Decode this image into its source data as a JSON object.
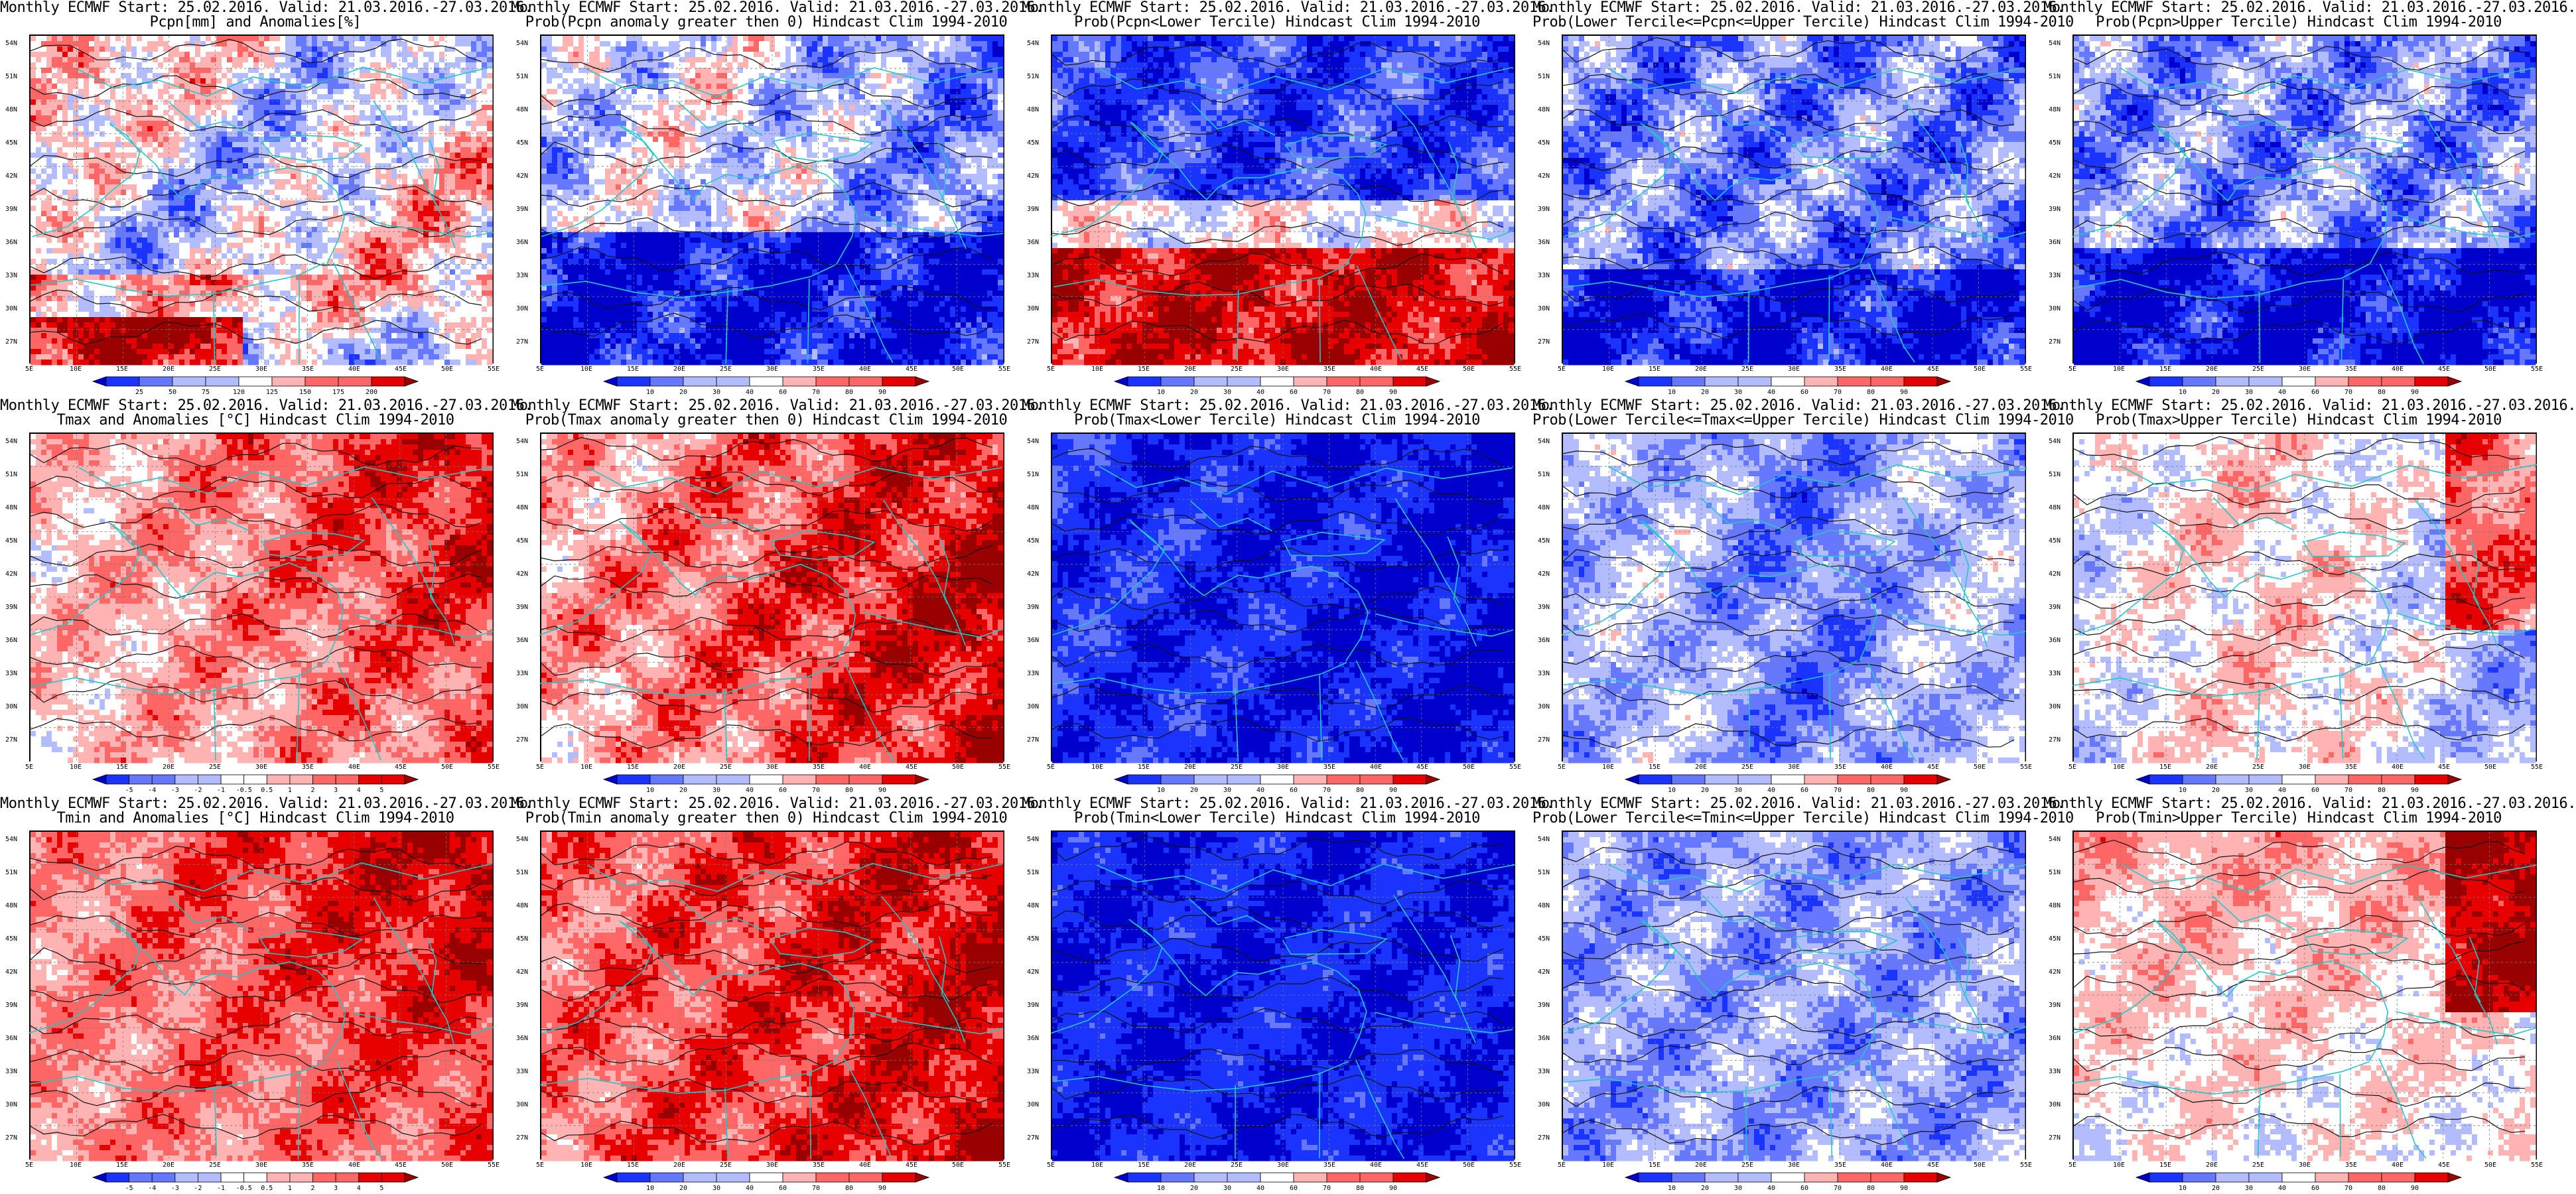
{
  "map": {
    "lat_ticks": [
      "54N",
      "51N",
      "48N",
      "45N",
      "42N",
      "39N",
      "36N",
      "33N",
      "30N",
      "27N"
    ],
    "lon_ticks": [
      "5E",
      "10E",
      "15E",
      "20E",
      "25E",
      "30E",
      "35E",
      "40E",
      "45E",
      "50E",
      "55E"
    ],
    "coast_color": "#22c7c7",
    "contour_color": "#111111"
  },
  "colorbars": {
    "precip": [
      "25",
      "50",
      "75",
      "120",
      "125",
      "150",
      "175",
      "200"
    ],
    "prob": [
      "10",
      "20",
      "30",
      "40",
      "60",
      "70",
      "80",
      "90"
    ],
    "anom": [
      "-5",
      "-4",
      "-3",
      "-2",
      "-1",
      "-0.5",
      "0.5",
      "1",
      "2",
      "3",
      "4",
      "5"
    ]
  },
  "panels": [
    {
      "title1": "Monthly ECMWF Start: 25.02.2016. Valid: 21.03.2016.-27.03.2016.",
      "title2": "Pcpn[mm] and Anomalies[%]",
      "cbar": "precip",
      "pattern": "pcp_anom",
      "seed": 11
    },
    {
      "title1": "Monthly ECMWF Start: 25.02.2016. Valid: 21.03.2016.-27.03.2016.",
      "title2": "Prob(Pcpn anomaly greater then 0) Hindcast Clim 1994-2010",
      "cbar": "prob",
      "pattern": "pcp_pos",
      "seed": 12
    },
    {
      "title1": "Monthly ECMWF Start: 25.02.2016. Valid: 21.03.2016.-27.03.2016.",
      "title2": "Prob(Pcpn<Lower Tercile) Hindcast Clim 1994-2010",
      "cbar": "prob",
      "pattern": "pcp_low",
      "seed": 13
    },
    {
      "title1": "Monthly ECMWF Start: 25.02.2016. Valid: 21.03.2016.-27.03.2016.",
      "title2": "Prob(Lower Tercile<=Pcpn<=Upper Tercile) Hindcast Clim 1994-2010",
      "cbar": "prob",
      "pattern": "pcp_mid",
      "seed": 14
    },
    {
      "title1": "Monthly ECMWF Start: 25.02.2016. Valid: 21.03.2016.-27.03.2016.",
      "title2": "Prob(Pcpn>Upper Tercile) Hindcast Clim 1994-2010",
      "cbar": "prob",
      "pattern": "pcp_up",
      "seed": 15
    },
    {
      "title1": "Monthly ECMWF Start: 25.02.2016. Valid: 21.03.2016.-27.03.2016.",
      "title2": "Tmax and Anomalies [°C] Hindcast Clim 1994-2010",
      "cbar": "anom",
      "pattern": "t_anom",
      "seed": 21
    },
    {
      "title1": "Monthly ECMWF Start: 25.02.2016. Valid: 21.03.2016.-27.03.2016.",
      "title2": "Prob(Tmax anomaly greater then 0) Hindcast Clim 1994-2010",
      "cbar": "prob",
      "pattern": "t_pos",
      "seed": 22
    },
    {
      "title1": "Monthly ECMWF Start: 25.02.2016. Valid: 21.03.2016.-27.03.2016.",
      "title2": "Prob(Tmax<Lower Tercile) Hindcast Clim 1994-2010",
      "cbar": "prob",
      "pattern": "t_low",
      "seed": 23
    },
    {
      "title1": "Monthly ECMWF Start: 25.02.2016. Valid: 21.03.2016.-27.03.2016.",
      "title2": "Prob(Lower Tercile<=Tmax<=Upper Tercile) Hindcast Clim 1994-2010",
      "cbar": "prob",
      "pattern": "t_mid",
      "seed": 24
    },
    {
      "title1": "Monthly ECMWF Start: 25.02.2016. Valid: 21.03.2016.-27.03.2016.",
      "title2": "Prob(Tmax>Upper Tercile) Hindcast Clim 1994-2010",
      "cbar": "prob",
      "pattern": "t_up",
      "seed": 25
    },
    {
      "title1": "Monthly ECMWF Start: 25.02.2016. Valid: 21.03.2016.-27.03.2016.",
      "title2": "Tmin and Anomalies [°C] Hindcast Clim 1994-2010",
      "cbar": "anom",
      "pattern": "tn_anom",
      "seed": 31
    },
    {
      "title1": "Monthly ECMWF Start: 25.02.2016. Valid: 21.03.2016.-27.03.2016.",
      "title2": "Prob(Tmin anomaly greater then 0) Hindcast Clim 1994-2010",
      "cbar": "prob",
      "pattern": "tn_pos",
      "seed": 32
    },
    {
      "title1": "Monthly ECMWF Start: 25.02.2016. Valid: 21.03.2016.-27.03.2016.",
      "title2": "Prob(Tmin<Lower Tercile) Hindcast Clim 1994-2010",
      "cbar": "prob",
      "pattern": "tn_low",
      "seed": 33
    },
    {
      "title1": "Monthly ECMWF Start: 25.02.2016. Valid: 21.03.2016.-27.03.2016.",
      "title2": "Prob(Lower Tercile<=Tmin<=Upper Tercile) Hindcast Clim 1994-2010",
      "cbar": "prob",
      "pattern": "tn_mid",
      "seed": 34
    },
    {
      "title1": "Monthly ECMWF Start: 25.02.2016. Valid: 21.03.2016.-27.03.2016.",
      "title2": "Prob(Tmin>Upper Tercile) Hindcast Clim 1994-2010",
      "cbar": "prob",
      "pattern": "tn_up",
      "seed": 35
    }
  ]
}
